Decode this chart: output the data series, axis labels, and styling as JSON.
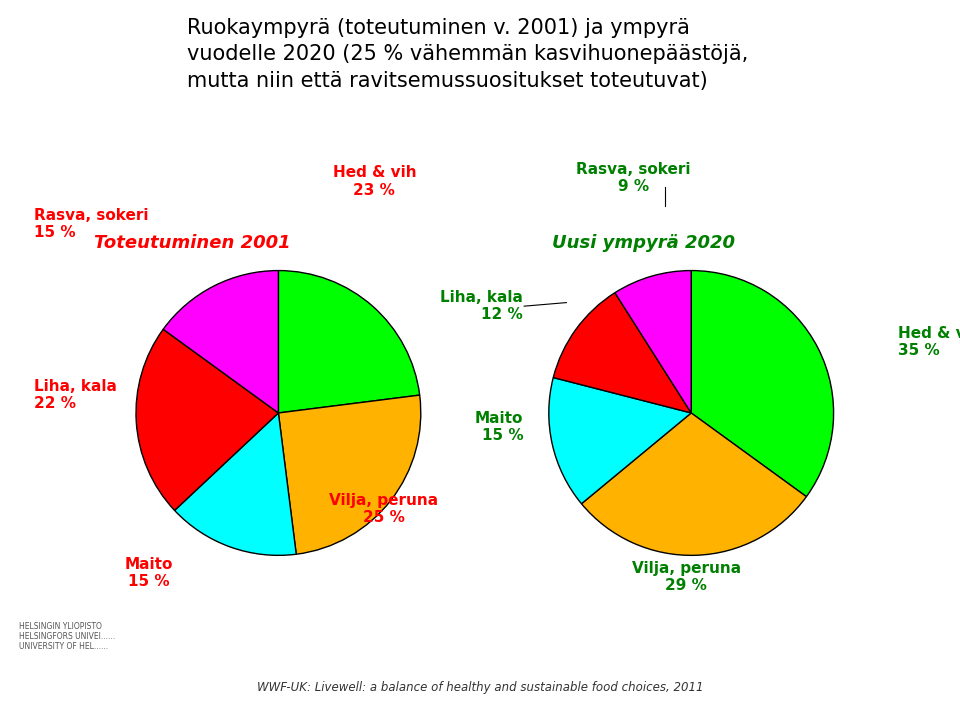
{
  "title_line1": "Ruokaympyrä (toteutuminen v. 2001) ja ympyrä",
  "title_line2": "vuodelle 2020 (25 % vähemmän kasvihuonepäästöjä,",
  "title_line3": "mutta niin että ravitsemussuositukset toteutuvat)",
  "label1": "Toteutuminen 2001",
  "label2": "Uusi ympyrä 2020",
  "label1_color": "#FF0000",
  "label2_color": "#008000",
  "footer": "WWF-UK: Livewell: a balance of healthy and sustainable food choices, 2011",
  "pie1_values": [
    23,
    25,
    15,
    22,
    15
  ],
  "pie1_colors": [
    "#00FF00",
    "#FFB300",
    "#00FFFF",
    "#FF0000",
    "#FF00FF"
  ],
  "pie1_startangle": 90,
  "pie1_text_color": "#FF0000",
  "pie2_values": [
    35,
    29,
    15,
    12,
    9
  ],
  "pie2_colors": [
    "#00FF00",
    "#FFB300",
    "#00FFFF",
    "#FF0000",
    "#FF00FF"
  ],
  "pie2_startangle": 90,
  "pie2_text_color": "#008000",
  "bg_color": "#FFFFFF",
  "title_color": "#000000",
  "separator_color": "#999999",
  "title_fontsize": 15,
  "label_fontsize": 13,
  "pie_label_fontsize": 11
}
